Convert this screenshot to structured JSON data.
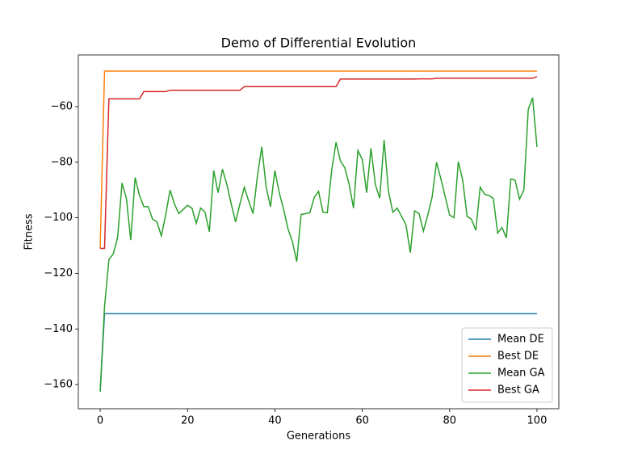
{
  "chart_data": {
    "type": "line",
    "title": "Demo of Differential Evolution",
    "x_label": "Generations",
    "y_label": "Fitness",
    "x": [
      0,
      1,
      2,
      3,
      4,
      5,
      6,
      7,
      8,
      9,
      10,
      11,
      12,
      13,
      14,
      15,
      16,
      17,
      18,
      19,
      20,
      21,
      22,
      23,
      24,
      25,
      26,
      27,
      28,
      29,
      30,
      31,
      32,
      33,
      34,
      35,
      36,
      37,
      38,
      39,
      40,
      41,
      42,
      43,
      44,
      45,
      46,
      47,
      48,
      49,
      50,
      51,
      52,
      53,
      54,
      55,
      56,
      57,
      58,
      59,
      60,
      61,
      62,
      63,
      64,
      65,
      66,
      67,
      68,
      69,
      70,
      71,
      72,
      73,
      74,
      75,
      76,
      77,
      78,
      79,
      80,
      81,
      82,
      83,
      84,
      85,
      86,
      87,
      88,
      89,
      90,
      91,
      92,
      93,
      94,
      95,
      96,
      97,
      98,
      99,
      100
    ],
    "series": [
      {
        "name": "Mean DE",
        "color": "#1f77b4",
        "values": [
          -162.5,
          -134.5,
          -134.5,
          -134.5,
          -134.5,
          -134.5,
          -134.5,
          -134.5,
          -134.5,
          -134.5,
          -134.5,
          -134.5,
          -134.5,
          -134.5,
          -134.5,
          -134.5,
          -134.5,
          -134.5,
          -134.5,
          -134.5,
          -134.5,
          -134.5,
          -134.5,
          -134.5,
          -134.5,
          -134.5,
          -134.5,
          -134.5,
          -134.5,
          -134.5,
          -134.5,
          -134.5,
          -134.5,
          -134.5,
          -134.5,
          -134.5,
          -134.5,
          -134.5,
          -134.5,
          -134.5,
          -134.5,
          -134.5,
          -134.5,
          -134.5,
          -134.5,
          -134.5,
          -134.5,
          -134.5,
          -134.5,
          -134.5,
          -134.5,
          -134.5,
          -134.5,
          -134.5,
          -134.5,
          -134.5,
          -134.5,
          -134.5,
          -134.5,
          -134.5,
          -134.5,
          -134.5,
          -134.5,
          -134.5,
          -134.5,
          -134.5,
          -134.5,
          -134.5,
          -134.5,
          -134.5,
          -134.5,
          -134.5,
          -134.5,
          -134.5,
          -134.5,
          -134.5,
          -134.5,
          -134.5,
          -134.5,
          -134.5,
          -134.5,
          -134.5,
          -134.5,
          -134.5,
          -134.5,
          -134.5,
          -134.5,
          -134.5,
          -134.5,
          -134.5,
          -134.5,
          -134.5,
          -134.5,
          -134.5,
          -134.5,
          -134.5,
          -134.5,
          -134.5,
          -134.5,
          -134.5,
          -134.5
        ]
      },
      {
        "name": "Best DE",
        "color": "#ff7f0e",
        "values": [
          -111,
          -47.2,
          -47.2,
          -47.2,
          -47.2,
          -47.2,
          -47.2,
          -47.2,
          -47.2,
          -47.2,
          -47.2,
          -47.2,
          -47.2,
          -47.2,
          -47.2,
          -47.2,
          -47.2,
          -47.2,
          -47.2,
          -47.2,
          -47.2,
          -47.2,
          -47.2,
          -47.2,
          -47.2,
          -47.2,
          -47.2,
          -47.2,
          -47.2,
          -47.2,
          -47.2,
          -47.2,
          -47.2,
          -47.2,
          -47.2,
          -47.2,
          -47.2,
          -47.2,
          -47.2,
          -47.2,
          -47.2,
          -47.2,
          -47.2,
          -47.2,
          -47.2,
          -47.2,
          -47.2,
          -47.2,
          -47.2,
          -47.2,
          -47.2,
          -47.2,
          -47.2,
          -47.2,
          -47.2,
          -47.2,
          -47.2,
          -47.2,
          -47.2,
          -47.2,
          -47.2,
          -47.2,
          -47.2,
          -47.2,
          -47.2,
          -47.2,
          -47.2,
          -47.2,
          -47.2,
          -47.2,
          -47.2,
          -47.2,
          -47.2,
          -47.2,
          -47.2,
          -47.2,
          -47.2,
          -47.2,
          -47.2,
          -47.2,
          -47.2,
          -47.2,
          -47.2,
          -47.2,
          -47.2,
          -47.2,
          -47.2,
          -47.2,
          -47.2,
          -47.2,
          -47.2,
          -47.2,
          -47.2,
          -47.2,
          -47.2,
          -47.2,
          -47.2,
          -47.2,
          -47.2,
          -47.2,
          -47.2
        ]
      },
      {
        "name": "Mean GA",
        "color": "#2ca02c",
        "values": [
          -162.5,
          -132,
          -115,
          -113,
          -107,
          -87.5,
          -93,
          -108,
          -85.5,
          -92,
          -96,
          -96,
          -100.5,
          -101.5,
          -106.5,
          -99,
          -90,
          -95,
          -98.5,
          -97,
          -95.5,
          -96.5,
          -102,
          -96.5,
          -98,
          -105,
          -83,
          -91,
          -82.5,
          -88,
          -95,
          -101.5,
          -95,
          -89,
          -94,
          -98.5,
          -85,
          -74.5,
          -89,
          -96,
          -83,
          -91,
          -97,
          -104,
          -108.5,
          -115.8,
          -98.8,
          -98.5,
          -98.2,
          -92.7,
          -90.5,
          -98,
          -98.2,
          -83,
          -72.8,
          -79.5,
          -82,
          -88,
          -96.5,
          -75.8,
          -79,
          -91,
          -75,
          -88,
          -93,
          -72,
          -90.5,
          -98,
          -96.5,
          -99.5,
          -102.5,
          -112.5,
          -97.5,
          -98.5,
          -104.8,
          -99,
          -92.5,
          -80,
          -86,
          -92.5,
          -99,
          -100,
          -79.8,
          -86.5,
          -99.5,
          -100.5,
          -104.5,
          -89,
          -91.5,
          -92,
          -93,
          -105.5,
          -103.5,
          -107.2,
          -86,
          -86.5,
          -93.3,
          -90,
          -61,
          -56.8,
          -74.5
        ]
      },
      {
        "name": "Best GA",
        "color": "#d62728",
        "values": [
          -111,
          -111,
          -57.2,
          -57.2,
          -57.2,
          -57.2,
          -57.2,
          -57.2,
          -57.2,
          -57.2,
          -54.6,
          -54.6,
          -54.6,
          -54.6,
          -54.6,
          -54.6,
          -54.1,
          -54.1,
          -54.1,
          -54.1,
          -54.1,
          -54.1,
          -54.1,
          -54.1,
          -54.1,
          -54.1,
          -54.1,
          -54.1,
          -54.1,
          -54.1,
          -54.1,
          -54.1,
          -54.1,
          -52.8,
          -52.8,
          -52.8,
          -52.8,
          -52.8,
          -52.8,
          -52.8,
          -52.8,
          -52.8,
          -52.8,
          -52.8,
          -52.8,
          -52.8,
          -52.8,
          -52.8,
          -52.8,
          -52.8,
          -52.8,
          -52.8,
          -52.8,
          -52.8,
          -52.8,
          -50.1,
          -50.1,
          -50.1,
          -50.1,
          -50.1,
          -50.1,
          -50.1,
          -50.1,
          -50.1,
          -50.1,
          -50.1,
          -50.1,
          -50.1,
          -50.1,
          -50.1,
          -50.1,
          -50.1,
          -50.1,
          -50.0,
          -50.0,
          -50.0,
          -50.0,
          -49.8,
          -49.8,
          -49.8,
          -49.8,
          -49.8,
          -49.8,
          -49.8,
          -49.8,
          -49.8,
          -49.8,
          -49.8,
          -49.8,
          -49.8,
          -49.8,
          -49.8,
          -49.8,
          -49.8,
          -49.8,
          -49.8,
          -49.8,
          -49.8,
          -49.8,
          -49.8,
          -49.2
        ]
      }
    ],
    "xlim": [
      -5,
      105
    ],
    "ylim": [
      -168.7,
      -41.4
    ],
    "xticks": [
      0,
      20,
      40,
      60,
      80,
      100
    ],
    "yticks": [
      {
        "value": -160,
        "label": "−160"
      },
      {
        "value": -140,
        "label": "−140"
      },
      {
        "value": -120,
        "label": "−120"
      },
      {
        "value": -100,
        "label": "−100"
      },
      {
        "value": -80,
        "label": "−80"
      },
      {
        "value": -60,
        "label": "−60"
      }
    ],
    "legend": "lower right",
    "grid": false
  }
}
